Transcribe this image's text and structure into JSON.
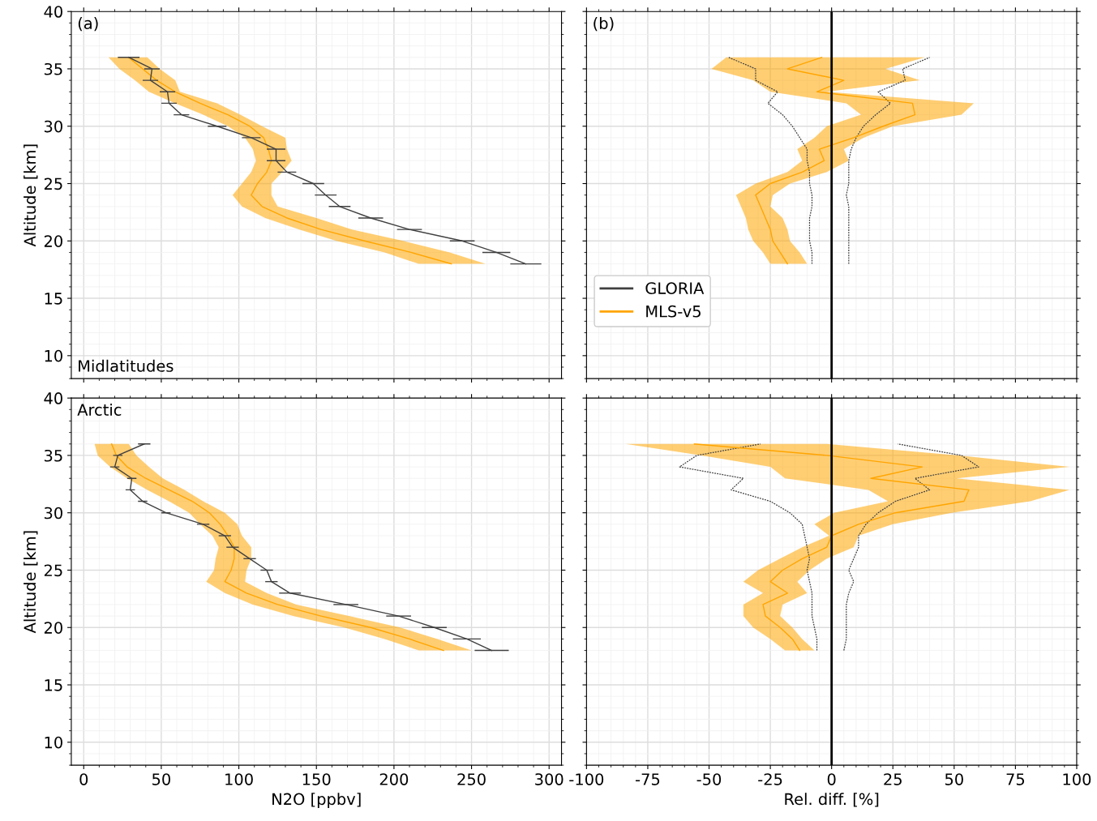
{
  "chart_data": [
    {
      "type": "line",
      "orientation": "horizontal",
      "ylabel": "Altitude [km]",
      "xlim": [
        -8,
        308
      ],
      "xticks": [
        0,
        50,
        100,
        150,
        200,
        250,
        300
      ],
      "ylim": [
        8,
        40
      ],
      "yticks": [
        10,
        15,
        20,
        25,
        30,
        35,
        40
      ],
      "grid": true,
      "tick_labels": "y",
      "legend": false,
      "marker": "none",
      "annotations": [
        "(a)",
        "Midlatitudes"
      ],
      "x": [
        18,
        19,
        20,
        21,
        22,
        23,
        24,
        25,
        26,
        27,
        28,
        29,
        30,
        31,
        32,
        33,
        34,
        35,
        36
      ],
      "series": [
        {
          "color": "#ffa500",
          "values": [
            237,
            211,
            181,
            153,
            131,
            115,
            108,
            112,
            118,
            121,
            119,
            116,
            107,
            93,
            75,
            59,
            47,
            38,
            29
          ],
          "lower": [
            216,
            194,
            163,
            139,
            117,
            102,
            96,
            102,
            108,
            111,
            109,
            104,
            93,
            77,
            59,
            42,
            33,
            23,
            16
          ],
          "upper": [
            259,
            236,
            206,
            173,
            150,
            125,
            121,
            121,
            128,
            134,
            131,
            130,
            115,
            101,
            86,
            62,
            59,
            49,
            41
          ]
        },
        {
          "color": "#404040",
          "values": [
            285,
            266,
            244,
            210,
            185,
            165,
            156,
            148,
            131,
            124,
            124,
            108,
            86,
            63,
            55,
            54,
            43,
            44,
            29
          ],
          "errors": [
            10,
            9,
            8,
            8,
            8,
            7,
            7,
            7,
            6,
            6,
            6,
            6,
            6,
            5,
            5,
            5,
            5,
            5,
            7
          ]
        }
      ]
    },
    {
      "type": "line",
      "orientation": "horizontal",
      "xlim": [
        -100,
        100
      ],
      "xticks": [
        -100,
        -75,
        -50,
        -25,
        0,
        25,
        50,
        75,
        100
      ],
      "ylim": [
        8,
        40
      ],
      "yticks": [
        10,
        15,
        20,
        25,
        30,
        35,
        40
      ],
      "grid": true,
      "tick_labels": false,
      "legend": "lower left",
      "marker": "none",
      "annotations": [
        "(b)"
      ],
      "ref_lines": [
        {
          "axis": "x",
          "value": 0,
          "color": "#000000"
        }
      ],
      "x": [
        18,
        19,
        20,
        21,
        22,
        23,
        24,
        25,
        26,
        27,
        28,
        29,
        30,
        31,
        32,
        33,
        34,
        35,
        36
      ],
      "series": [
        {
          "name": "GLORIA",
          "color": "#404040",
          "line_style": "dotted",
          "values": [
            -8,
            -8,
            -9,
            -9,
            -9,
            -8,
            -8,
            -9,
            -9,
            -10,
            -10,
            -13,
            -16,
            -20,
            -26,
            -22,
            -31,
            -31,
            -42
          ]
        },
        {
          "color": "#404040",
          "line_style": "dotted",
          "values": [
            7,
            7,
            7,
            7,
            7,
            7,
            6,
            7,
            7,
            7,
            8,
            10,
            13,
            18,
            24,
            19,
            30,
            29,
            40
          ]
        },
        {
          "name": "MLS-v5",
          "color": "#ffa500",
          "values": [
            -18,
            -21,
            -24,
            -25,
            -27,
            -29,
            -31,
            -25,
            -12,
            -3,
            -5,
            9,
            21,
            34,
            33,
            -6,
            5,
            -18,
            -4
          ],
          "lower": [
            -25,
            -28,
            -32,
            -34,
            -35,
            -37,
            -39,
            -31,
            -18,
            -12,
            -14,
            -7,
            -2,
            12,
            6,
            -25,
            -32,
            -49,
            -43
          ],
          "upper": [
            -10,
            -13,
            -17,
            -18,
            -20,
            -25,
            -24,
            -17,
            -2,
            7,
            5,
            13,
            25,
            53,
            58,
            -2,
            36,
            22,
            38
          ]
        }
      ]
    },
    {
      "type": "line",
      "orientation": "horizontal",
      "xlabel": "N2O [ppbv]",
      "ylabel": "Altitude [km]",
      "xlim": [
        -8,
        308
      ],
      "xticks": [
        0,
        50,
        100,
        150,
        200,
        250,
        300
      ],
      "ylim": [
        8,
        40
      ],
      "yticks": [
        10,
        15,
        20,
        25,
        30,
        35,
        40
      ],
      "grid": true,
      "legend": false,
      "marker": "none",
      "annotations": [
        "Arctic"
      ],
      "x": [
        18,
        19,
        20,
        21,
        22,
        23,
        24,
        25,
        26,
        27,
        28,
        29,
        30,
        31,
        32,
        33,
        34,
        35,
        36
      ],
      "series": [
        {
          "color": "#ffa500",
          "values": [
            232,
            210,
            185,
            153,
            125,
            105,
            91,
            95,
            97,
            97,
            93,
            88,
            81,
            70,
            55,
            40,
            28,
            21,
            18
          ],
          "lower": [
            216,
            194,
            168,
            135,
            109,
            91,
            79,
            84,
            85,
            87,
            83,
            75,
            68,
            55,
            41,
            28,
            17,
            9,
            7
          ],
          "upper": [
            250,
            228,
            204,
            171,
            137,
            118,
            104,
            105,
            108,
            108,
            102,
            99,
            91,
            77,
            65,
            51,
            42,
            34,
            29
          ]
        },
        {
          "color": "#404040",
          "values": [
            263,
            247,
            226,
            203,
            169,
            133,
            121,
            118,
            107,
            96,
            91,
            77,
            53,
            38,
            30,
            31,
            20,
            22,
            39
          ],
          "errors": [
            11,
            9,
            8,
            8,
            8,
            7,
            4,
            4,
            4,
            4,
            4,
            4,
            3,
            3,
            3,
            3,
            3,
            3,
            4
          ]
        }
      ]
    },
    {
      "type": "line",
      "orientation": "horizontal",
      "xlabel": "Rel. diff. [%]",
      "xlim": [
        -100,
        100
      ],
      "xticks": [
        -100,
        -75,
        -50,
        -25,
        0,
        25,
        50,
        75,
        100
      ],
      "ylim": [
        8,
        40
      ],
      "yticks": [
        10,
        15,
        20,
        25,
        30,
        35,
        40
      ],
      "grid": true,
      "tick_labels": "x",
      "legend": false,
      "marker": "none",
      "ref_lines": [
        {
          "axis": "x",
          "value": 0,
          "color": "#000000"
        }
      ],
      "x": [
        18,
        19,
        20,
        21,
        22,
        23,
        24,
        25,
        26,
        27,
        28,
        29,
        30,
        31,
        32,
        33,
        34,
        35,
        36
      ],
      "series": [
        {
          "color": "#404040",
          "line_style": "dotted",
          "values": [
            -6,
            -6,
            -7,
            -8,
            -8,
            -8,
            -9,
            -10,
            -9,
            -10,
            -11,
            -12,
            -17,
            -25,
            -41,
            -36,
            -62,
            -55,
            -29
          ]
        },
        {
          "color": "#404040",
          "line_style": "dotted",
          "values": [
            5,
            6,
            6,
            6,
            6,
            7,
            9,
            7,
            9,
            11,
            11,
            14,
            19,
            26,
            40,
            34,
            60,
            53,
            27
          ]
        },
        {
          "color": "#ffa500",
          "values": [
            -13,
            -16,
            -21,
            -27,
            -28,
            -18,
            -25,
            -20,
            -12,
            -2,
            0,
            11,
            26,
            54,
            56,
            16,
            37,
            -2,
            -56
          ],
          "lower": [
            -19,
            -25,
            -32,
            -36,
            -36,
            -28,
            -36,
            -30,
            -21,
            -12,
            -1,
            -7,
            1,
            23,
            15,
            -19,
            -25,
            -53,
            -84
          ],
          "upper": [
            -7,
            -12,
            -16,
            -21,
            -20,
            -10,
            -14,
            -9,
            -2,
            9,
            11,
            25,
            49,
            81,
            97,
            51,
            97,
            52,
            -2
          ]
        }
      ]
    }
  ]
}
